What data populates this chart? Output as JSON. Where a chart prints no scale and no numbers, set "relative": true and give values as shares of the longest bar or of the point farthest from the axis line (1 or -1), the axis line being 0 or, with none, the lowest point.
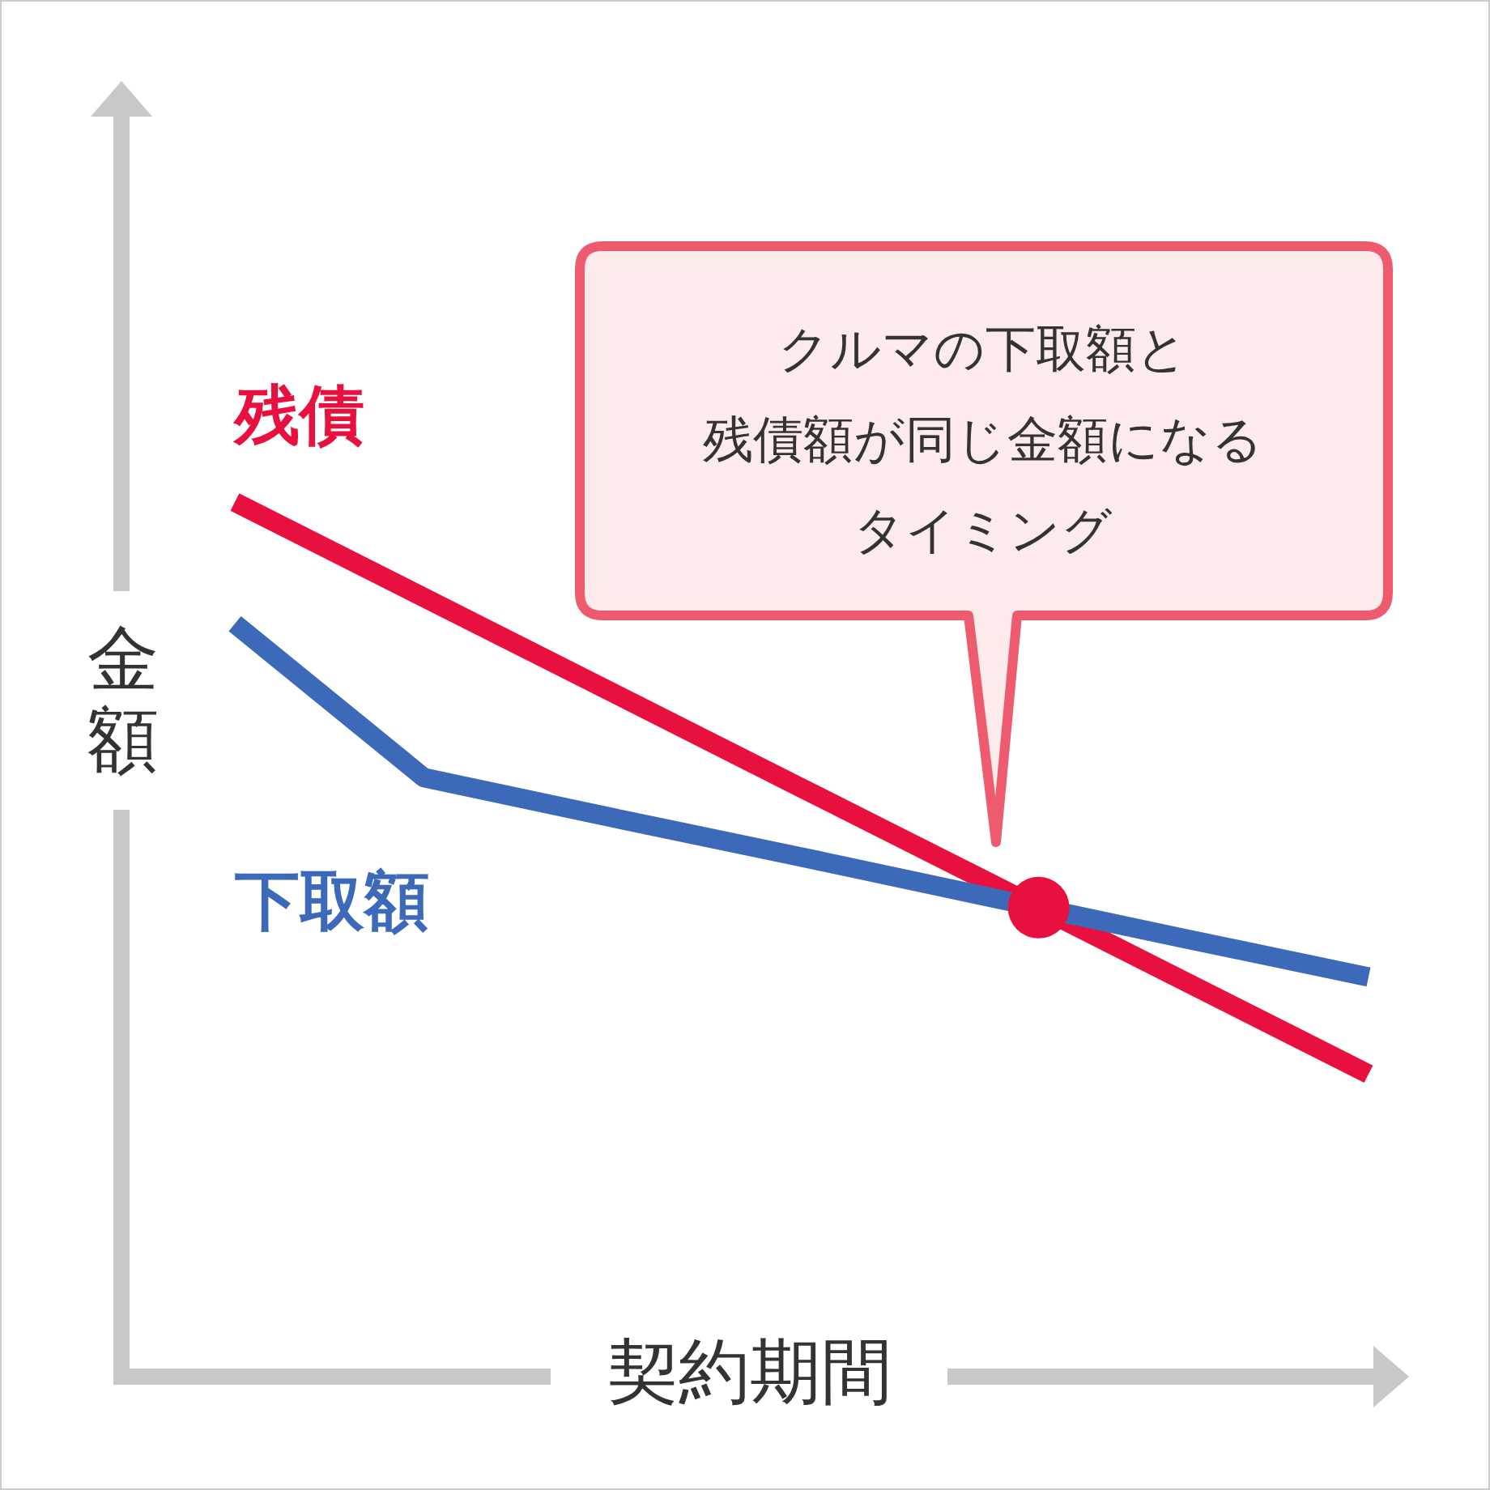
{
  "chart_data": {
    "type": "line",
    "relative": true,
    "xlabel": "契約期間",
    "ylabel": "金額",
    "categories": [
      null,
      null,
      null,
      null,
      null,
      null,
      null
    ],
    "series": [
      {
        "name": "残債",
        "color": "#e8103e",
        "values": [
          1,
          0.891,
          0.782,
          0.673,
          0.564,
          0.455,
          0.346
        ]
      },
      {
        "name": "下取額",
        "color": "#3d6ab8",
        "values": [
          0.861,
          0.685,
          0.639,
          0.594,
          0.548,
          0.502,
          0.457
        ]
      }
    ],
    "annotations": [
      "クルマの下取額と",
      "残債額が同じ金額になる",
      "タイミング"
    ],
    "marker": "none",
    "line_style": "solid"
  }
}
